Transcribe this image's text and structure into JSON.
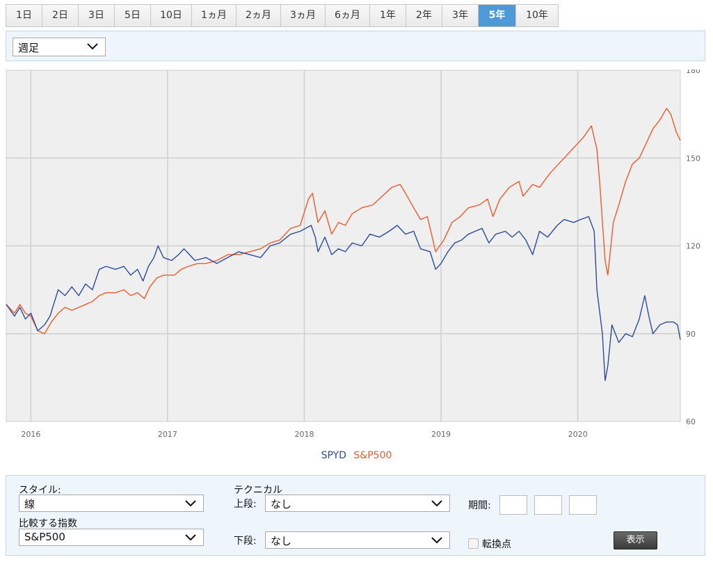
{
  "range_tabs": [
    {
      "label": "1日",
      "active": false
    },
    {
      "label": "2日",
      "active": false
    },
    {
      "label": "3日",
      "active": false
    },
    {
      "label": "5日",
      "active": false
    },
    {
      "label": "10日",
      "active": false
    },
    {
      "label": "1ヵ月",
      "active": false
    },
    {
      "label": "2ヵ月",
      "active": false
    },
    {
      "label": "3ヵ月",
      "active": false
    },
    {
      "label": "6ヵ月",
      "active": false
    },
    {
      "label": "1年",
      "active": false
    },
    {
      "label": "2年",
      "active": false
    },
    {
      "label": "3年",
      "active": false
    },
    {
      "label": "5年",
      "active": true
    },
    {
      "label": "10年",
      "active": false
    }
  ],
  "interval_select": {
    "value": "週足"
  },
  "controls": {
    "style_label": "スタイル:",
    "style_value": "線",
    "compare_label": "比較する指数",
    "compare_value": "S&P500",
    "technical_label": "テクニカル",
    "upper_label": "上段:",
    "upper_value": "なし",
    "lower_label": "下段:",
    "lower_value": "なし",
    "period_label": "期間:",
    "turning_point_label": "転換点",
    "show_button": "表示"
  },
  "colors": {
    "spyd": "#2a4a9a",
    "sp500": "#ee5a2c",
    "plot_bg": "#efefef",
    "grid": "#cfcfcf",
    "active_tab": "#4e9ad8"
  },
  "chart_data": {
    "type": "line",
    "x_axis_labels": [
      "2016",
      "2017",
      "2018",
      "2019",
      "2020"
    ],
    "y_ticks": [
      60,
      90,
      120,
      150,
      180
    ],
    "ylim": [
      60,
      180
    ],
    "xlim": [
      2015.82,
      2020.75
    ],
    "grid": true,
    "legend_position": "bottom-center",
    "series": [
      {
        "name": "SPYD",
        "color": "#2a4a9a",
        "points": [
          [
            2015.82,
            100
          ],
          [
            2015.88,
            96
          ],
          [
            2015.92,
            99
          ],
          [
            2015.96,
            95
          ],
          [
            2016.0,
            97
          ],
          [
            2016.05,
            91
          ],
          [
            2016.1,
            93
          ],
          [
            2016.14,
            96
          ],
          [
            2016.2,
            105
          ],
          [
            2016.25,
            103
          ],
          [
            2016.3,
            106
          ],
          [
            2016.35,
            103
          ],
          [
            2016.4,
            107
          ],
          [
            2016.45,
            105
          ],
          [
            2016.5,
            112
          ],
          [
            2016.55,
            113
          ],
          [
            2016.62,
            112
          ],
          [
            2016.68,
            113
          ],
          [
            2016.73,
            110
          ],
          [
            2016.78,
            112
          ],
          [
            2016.82,
            108
          ],
          [
            2016.86,
            113
          ],
          [
            2016.9,
            116
          ],
          [
            2016.93,
            120
          ],
          [
            2016.97,
            116
          ],
          [
            2017.03,
            115
          ],
          [
            2017.08,
            117
          ],
          [
            2017.12,
            119
          ],
          [
            2017.16,
            117
          ],
          [
            2017.2,
            115
          ],
          [
            2017.28,
            116
          ],
          [
            2017.36,
            114
          ],
          [
            2017.44,
            116
          ],
          [
            2017.52,
            118
          ],
          [
            2017.6,
            117
          ],
          [
            2017.68,
            116
          ],
          [
            2017.75,
            120
          ],
          [
            2017.82,
            121
          ],
          [
            2017.9,
            124
          ],
          [
            2017.97,
            125
          ],
          [
            2018.05,
            127
          ],
          [
            2018.08,
            123
          ],
          [
            2018.1,
            118
          ],
          [
            2018.15,
            123
          ],
          [
            2018.2,
            117
          ],
          [
            2018.25,
            119
          ],
          [
            2018.3,
            118
          ],
          [
            2018.35,
            121
          ],
          [
            2018.42,
            120
          ],
          [
            2018.48,
            124
          ],
          [
            2018.55,
            123
          ],
          [
            2018.62,
            125
          ],
          [
            2018.68,
            127
          ],
          [
            2018.74,
            124
          ],
          [
            2018.8,
            125
          ],
          [
            2018.85,
            119
          ],
          [
            2018.92,
            118
          ],
          [
            2018.96,
            112
          ],
          [
            2019.0,
            114
          ],
          [
            2019.05,
            118
          ],
          [
            2019.1,
            121
          ],
          [
            2019.15,
            122
          ],
          [
            2019.2,
            124
          ],
          [
            2019.25,
            125
          ],
          [
            2019.3,
            126
          ],
          [
            2019.35,
            121
          ],
          [
            2019.4,
            124
          ],
          [
            2019.47,
            125
          ],
          [
            2019.52,
            123
          ],
          [
            2019.57,
            125
          ],
          [
            2019.62,
            122
          ],
          [
            2019.67,
            117
          ],
          [
            2019.72,
            125
          ],
          [
            2019.78,
            123
          ],
          [
            2019.85,
            127
          ],
          [
            2019.9,
            129
          ],
          [
            2019.97,
            128
          ],
          [
            2020.02,
            129
          ],
          [
            2020.08,
            130
          ],
          [
            2020.12,
            125
          ],
          [
            2020.14,
            105
          ],
          [
            2020.18,
            90
          ],
          [
            2020.2,
            74
          ],
          [
            2020.22,
            79
          ],
          [
            2020.25,
            93
          ],
          [
            2020.3,
            87
          ],
          [
            2020.35,
            90
          ],
          [
            2020.4,
            89
          ],
          [
            2020.45,
            95
          ],
          [
            2020.49,
            103
          ],
          [
            2020.52,
            96
          ],
          [
            2020.55,
            90
          ],
          [
            2020.6,
            93
          ],
          [
            2020.65,
            94
          ],
          [
            2020.7,
            94
          ],
          [
            2020.73,
            93
          ],
          [
            2020.75,
            88
          ]
        ]
      },
      {
        "name": "S&P500",
        "color": "#ee5a2c",
        "points": [
          [
            2015.82,
            100
          ],
          [
            2015.88,
            97
          ],
          [
            2015.92,
            100
          ],
          [
            2015.96,
            97
          ],
          [
            2016.0,
            96
          ],
          [
            2016.05,
            91
          ],
          [
            2016.1,
            90
          ],
          [
            2016.15,
            94
          ],
          [
            2016.2,
            97
          ],
          [
            2016.25,
            99
          ],
          [
            2016.3,
            98
          ],
          [
            2016.35,
            99
          ],
          [
            2016.4,
            100
          ],
          [
            2016.45,
            101
          ],
          [
            2016.5,
            103
          ],
          [
            2016.55,
            104
          ],
          [
            2016.62,
            104
          ],
          [
            2016.68,
            105
          ],
          [
            2016.73,
            103
          ],
          [
            2016.78,
            104
          ],
          [
            2016.83,
            102
          ],
          [
            2016.87,
            106
          ],
          [
            2016.92,
            109
          ],
          [
            2016.97,
            110
          ],
          [
            2017.05,
            110
          ],
          [
            2017.1,
            112
          ],
          [
            2017.15,
            113
          ],
          [
            2017.22,
            114
          ],
          [
            2017.28,
            114
          ],
          [
            2017.36,
            115
          ],
          [
            2017.44,
            117
          ],
          [
            2017.52,
            117
          ],
          [
            2017.6,
            118
          ],
          [
            2017.68,
            119
          ],
          [
            2017.75,
            121
          ],
          [
            2017.82,
            122
          ],
          [
            2017.9,
            126
          ],
          [
            2017.97,
            127
          ],
          [
            2018.03,
            136
          ],
          [
            2018.06,
            138
          ],
          [
            2018.1,
            128
          ],
          [
            2018.15,
            132
          ],
          [
            2018.2,
            124
          ],
          [
            2018.25,
            128
          ],
          [
            2018.3,
            127
          ],
          [
            2018.35,
            131
          ],
          [
            2018.42,
            133
          ],
          [
            2018.5,
            134
          ],
          [
            2018.57,
            137
          ],
          [
            2018.64,
            140
          ],
          [
            2018.7,
            141
          ],
          [
            2018.74,
            138
          ],
          [
            2018.8,
            133
          ],
          [
            2018.85,
            129
          ],
          [
            2018.9,
            130
          ],
          [
            2018.96,
            118
          ],
          [
            2019.02,
            122
          ],
          [
            2019.08,
            128
          ],
          [
            2019.14,
            130
          ],
          [
            2019.2,
            133
          ],
          [
            2019.28,
            134
          ],
          [
            2019.34,
            136
          ],
          [
            2019.38,
            130
          ],
          [
            2019.43,
            136
          ],
          [
            2019.5,
            140
          ],
          [
            2019.57,
            142
          ],
          [
            2019.6,
            137
          ],
          [
            2019.67,
            141
          ],
          [
            2019.72,
            140
          ],
          [
            2019.8,
            145
          ],
          [
            2019.86,
            148
          ],
          [
            2019.92,
            151
          ],
          [
            2019.98,
            154
          ],
          [
            2020.04,
            157
          ],
          [
            2020.1,
            161
          ],
          [
            2020.14,
            153
          ],
          [
            2020.16,
            142
          ],
          [
            2020.2,
            115
          ],
          [
            2020.22,
            110
          ],
          [
            2020.26,
            128
          ],
          [
            2020.3,
            134
          ],
          [
            2020.35,
            142
          ],
          [
            2020.4,
            148
          ],
          [
            2020.45,
            150
          ],
          [
            2020.5,
            155
          ],
          [
            2020.55,
            160
          ],
          [
            2020.6,
            163
          ],
          [
            2020.65,
            167
          ],
          [
            2020.68,
            165
          ],
          [
            2020.72,
            159
          ],
          [
            2020.75,
            156
          ]
        ]
      }
    ]
  }
}
